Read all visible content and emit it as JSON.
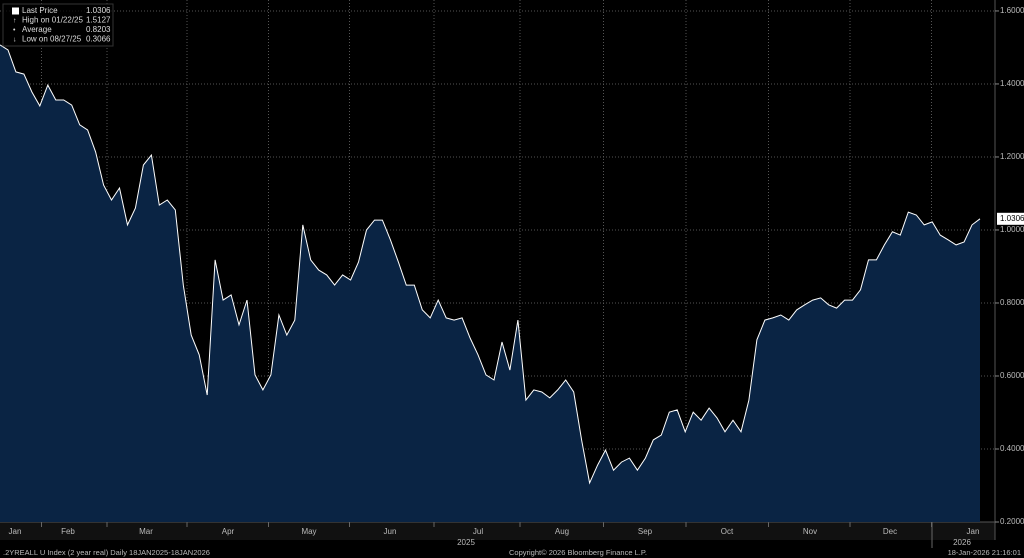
{
  "chart_data": {
    "type": "area",
    "stats": [
      {
        "label": "Last Price",
        "value": 1.0306
      },
      {
        "label": "High on 01/22/25",
        "value": 1.5127
      },
      {
        "label": "Average",
        "value": 0.8203
      },
      {
        "label": "Low on 08/27/25",
        "value": 0.3066
      }
    ],
    "last_price_label": "1.0306",
    "x_labels": [
      "Jan",
      "Feb",
      "Mar",
      "Apr",
      "May",
      "Jun",
      "Jul",
      "Aug",
      "Sep",
      "Oct",
      "Nov",
      "Dec",
      "Jan"
    ],
    "years": [
      "2025",
      "2026"
    ],
    "series": [
      {
        "name": "Last Price",
        "color": "#ffffff",
        "fill": "#0a2444",
        "values": [
          1.507,
          1.493,
          1.433,
          1.427,
          1.378,
          1.34,
          1.397,
          1.356,
          1.356,
          1.342,
          1.288,
          1.274,
          1.214,
          1.123,
          1.082,
          1.115,
          1.014,
          1.06,
          1.178,
          1.205,
          1.068,
          1.082,
          1.055,
          0.849,
          0.712,
          0.658,
          0.548,
          0.918,
          0.808,
          0.822,
          0.74,
          0.808,
          0.603,
          0.562,
          0.603,
          0.767,
          0.712,
          0.753,
          1.014,
          0.918,
          0.89,
          0.877,
          0.849,
          0.877,
          0.863,
          0.912,
          1.0,
          1.027,
          1.027,
          0.973,
          0.912,
          0.849,
          0.849,
          0.781,
          0.759,
          0.808,
          0.759,
          0.753,
          0.759,
          0.704,
          0.658,
          0.603,
          0.589,
          0.693,
          0.616,
          0.753,
          0.534,
          0.562,
          0.556,
          0.54,
          0.562,
          0.589,
          0.556,
          0.425,
          0.307,
          0.356,
          0.397,
          0.342,
          0.364,
          0.375,
          0.342,
          0.375,
          0.425,
          0.438,
          0.501,
          0.507,
          0.447,
          0.501,
          0.479,
          0.512,
          0.485,
          0.447,
          0.479,
          0.447,
          0.534,
          0.699,
          0.753,
          0.759,
          0.767,
          0.753,
          0.781,
          0.795,
          0.808,
          0.814,
          0.795,
          0.786,
          0.808,
          0.808,
          0.836,
          0.918,
          0.918,
          0.959,
          0.995,
          0.986,
          1.049,
          1.041,
          1.014,
          1.022,
          0.986,
          0.973,
          0.959,
          0.967,
          1.014,
          1.0306
        ]
      }
    ],
    "ylim": [
      0.2,
      1.63
    ],
    "yticks": [
      {
        "value": 0.2,
        "label": "0.2000"
      },
      {
        "value": 0.4,
        "label": "0.4000"
      },
      {
        "value": 0.6,
        "label": "0.6000"
      },
      {
        "value": 0.8,
        "label": "0.8000"
      },
      {
        "value": 1.0,
        "label": "1.0000"
      },
      {
        "value": 1.2,
        "label": "1.2000"
      },
      {
        "value": 1.4,
        "label": "1.4000"
      },
      {
        "value": 1.6,
        "label": "1.6000"
      }
    ],
    "grid": true,
    "footer": {
      "left": ".2YREALL U Index (2 year real) Daily 18JAN2025-18JAN2026",
      "center": "Copyright© 2026 Bloomberg Finance L.P.",
      "right": "18-Jan-2026 21:16:01"
    }
  }
}
